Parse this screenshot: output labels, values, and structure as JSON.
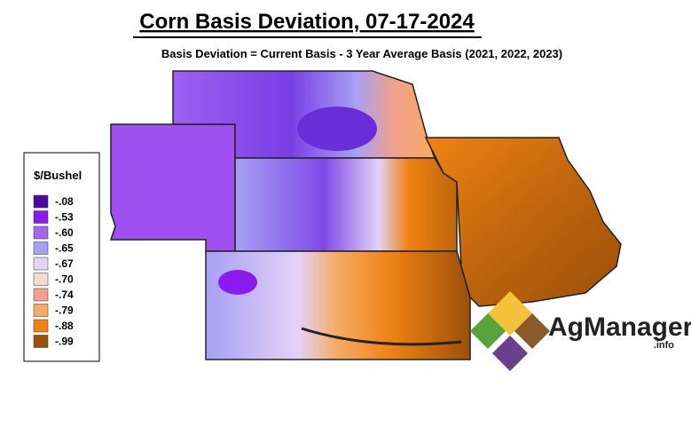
{
  "header": {
    "title": "Corn Basis Deviation, 07-17-2024",
    "subtitle": "Basis Deviation = Current Basis - 3 Year Average Basis (2021, 2022, 2023)"
  },
  "legend": {
    "title": "$/Bushel",
    "items": [
      {
        "label": "-.08",
        "color": "#4b0c9e"
      },
      {
        "label": "-.53",
        "color": "#8a1cf0"
      },
      {
        "label": "-.60",
        "color": "#a565ee"
      },
      {
        "label": "-.65",
        "color": "#a7a0f4"
      },
      {
        "label": "-.67",
        "color": "#e4d2f7"
      },
      {
        "label": "-.70",
        "color": "#f6dccd"
      },
      {
        "label": "-.74",
        "color": "#f2a08c"
      },
      {
        "label": "-.79",
        "color": "#f5aa62"
      },
      {
        "label": "-.88",
        "color": "#f08214"
      },
      {
        "label": "-.99",
        "color": "#9c4f0a"
      }
    ]
  },
  "logo": {
    "name": "AgManager",
    "suffix": ".info"
  }
}
